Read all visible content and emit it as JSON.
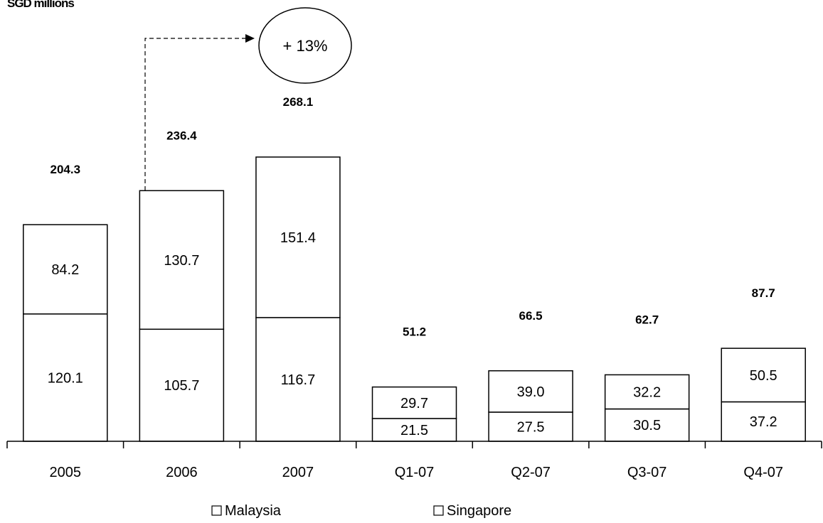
{
  "chart_data": {
    "type": "bar",
    "stacked": true,
    "unit_label": "SGD millions",
    "categories": [
      "2005",
      "2006",
      "2007",
      "Q1-07",
      "Q2-07",
      "Q3-07",
      "Q4-07"
    ],
    "series": [
      {
        "name": "Malaysia",
        "values": [
          120.1,
          105.7,
          116.7,
          21.5,
          27.5,
          30.5,
          37.2
        ]
      },
      {
        "name": "Singapore",
        "values": [
          84.2,
          130.7,
          151.4,
          29.7,
          39.0,
          32.2,
          50.5
        ]
      }
    ],
    "series_labels": [
      [
        "120.1",
        "105.7",
        "116.7",
        "21.5",
        "27.5",
        "30.5",
        "37.2"
      ],
      [
        "84.2",
        "130.7",
        "151.4",
        "29.7",
        "39.0",
        "32.2",
        "50.5"
      ]
    ],
    "totals": [
      "204.3",
      "236.4",
      "268.1",
      "51.2",
      "66.5",
      "62.7",
      "87.7"
    ],
    "growth_annotation": "+ 13%",
    "legend_position": "bottom",
    "grid": false,
    "colors": {
      "bar_fill": "#ffffff",
      "bar_stroke": "#000000"
    }
  }
}
